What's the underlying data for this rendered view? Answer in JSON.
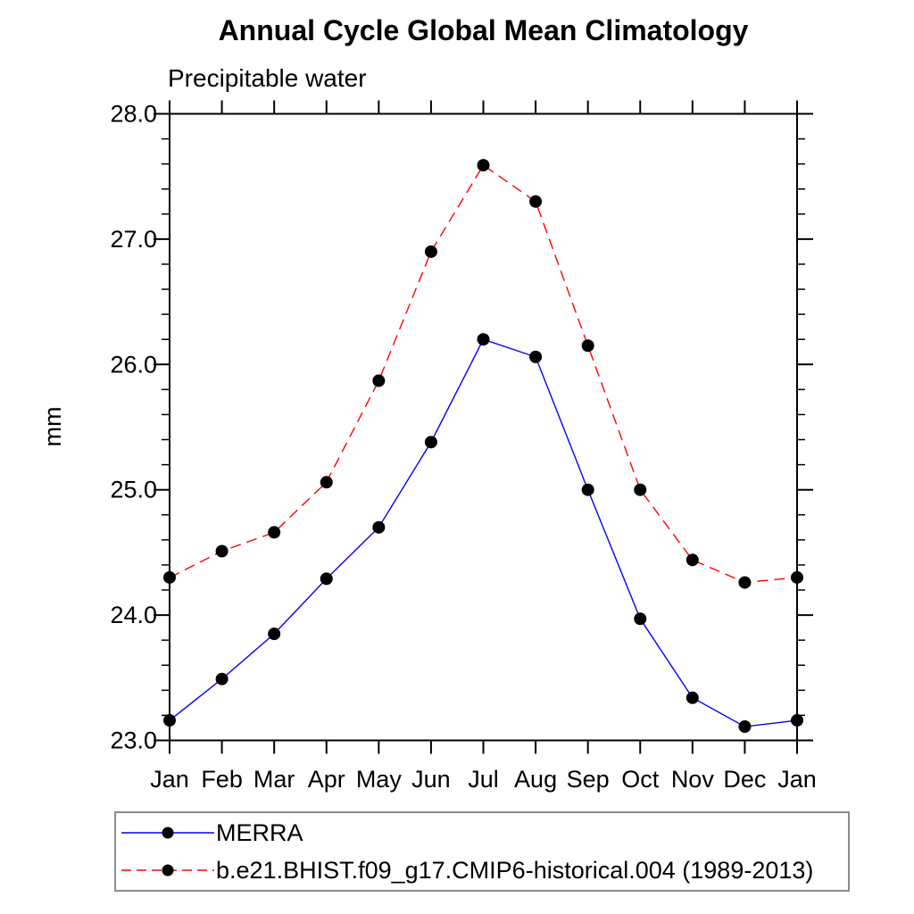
{
  "page": {
    "background": "#ffffff"
  },
  "chart_data": {
    "type": "line",
    "title": "Annual Cycle Global Mean Climatology",
    "subtitle": "Precipitable water",
    "xlabel": "",
    "ylabel": "mm",
    "x_tick_labels": [
      "Jan",
      "Feb",
      "Mar",
      "Apr",
      "May",
      "Jun",
      "Jul",
      "Aug",
      "Sep",
      "Oct",
      "Nov",
      "Dec",
      "Jan"
    ],
    "ylim": [
      23.0,
      28.0
    ],
    "y_major_ticks": [
      23.0,
      24.0,
      25.0,
      26.0,
      27.0,
      28.0
    ],
    "y_tick_labels": [
      "23.0",
      "24.0",
      "25.0",
      "26.0",
      "27.0",
      "28.0"
    ],
    "y_minor_step": 0.2,
    "grid": false,
    "frame_color": "#000000",
    "legend_position": "bottom-left-box",
    "legend_border_color": "#8c8c8c",
    "marker": "filled-circle",
    "marker_color": "#000000",
    "series": [
      {
        "name": "MERRA",
        "color": "#0000ff",
        "line_style": "solid",
        "values": [
          23.16,
          23.49,
          23.85,
          24.29,
          24.7,
          25.38,
          26.2,
          26.06,
          25.0,
          23.97,
          23.34,
          23.11,
          23.16
        ]
      },
      {
        "name": "b.e21.BHIST.f09_g17.CMIP6-historical.004 (1989-2013)",
        "color": "#ff0000",
        "line_style": "dashed",
        "values": [
          24.3,
          24.51,
          24.66,
          25.06,
          25.87,
          26.9,
          27.59,
          27.3,
          26.15,
          25.0,
          24.44,
          24.26,
          24.3
        ]
      }
    ]
  }
}
